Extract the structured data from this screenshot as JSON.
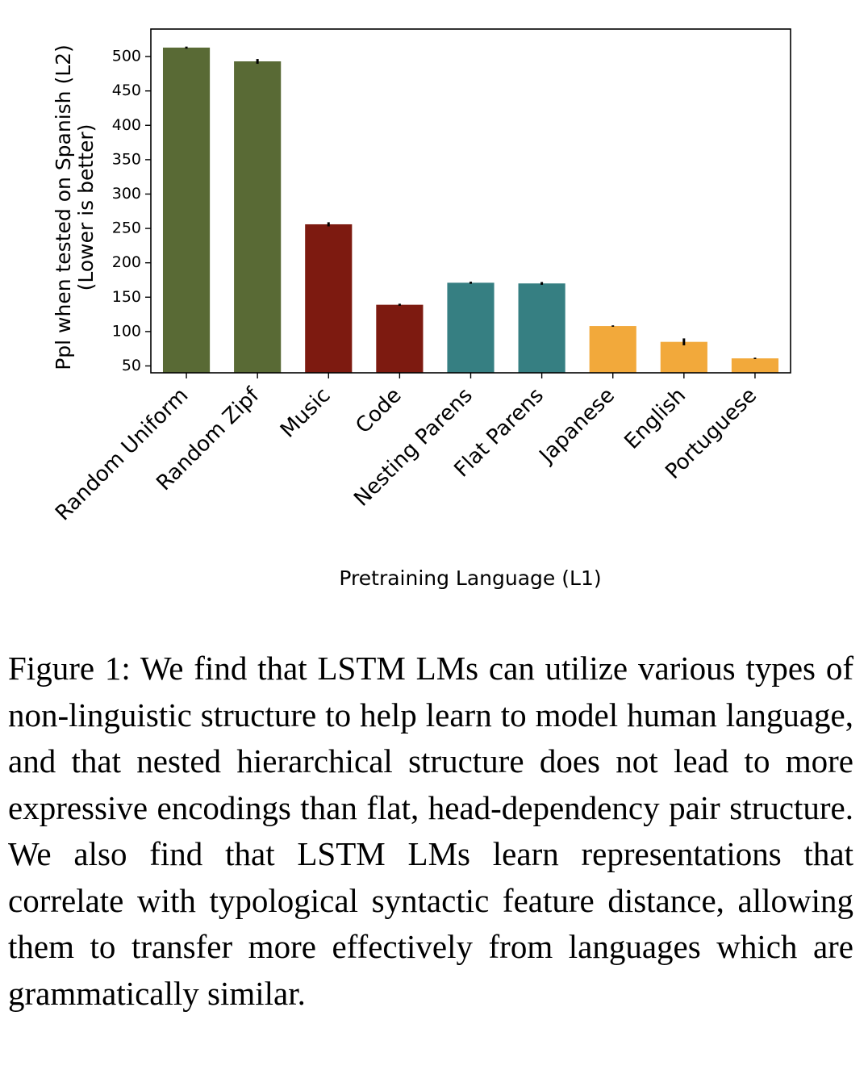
{
  "chart_data": {
    "type": "bar",
    "categories": [
      "Random Uniform",
      "Random Zipf",
      "Music",
      "Code",
      "Nesting Parens",
      "Flat Parens",
      "Japanese",
      "English",
      "Portuguese"
    ],
    "values": [
      513,
      493,
      256,
      139,
      171,
      170,
      108,
      85,
      61
    ],
    "errors": [
      1.5,
      3.5,
      3,
      1.5,
      1.5,
      2,
      1,
      5,
      1
    ],
    "colors": [
      "#596a35",
      "#596a35",
      "#7d1a10",
      "#7d1a10",
      "#367f82",
      "#367f82",
      "#f2a93b",
      "#f2a93b",
      "#f2a93b"
    ],
    "ylabel": [
      "Ppl when tested on Spanish (L2)",
      "(Lower is better)"
    ],
    "xlabel": "Pretraining Language (L1)",
    "yticks": [
      50,
      100,
      150,
      200,
      250,
      300,
      350,
      400,
      450,
      500
    ],
    "ylim": [
      40,
      540
    ],
    "grid": false,
    "legend": "none"
  },
  "caption": "Figure 1: We find that LSTM LMs can utilize various types of non-linguistic structure to help learn to model human language, and that nested hierarchical structure does not lead to more expressive encodings than flat, head-dependency pair structure. We also find that LSTM LMs learn representations that correlate with typological syntactic feature distance, allowing them to transfer more effectively from languages which are grammatically similar."
}
